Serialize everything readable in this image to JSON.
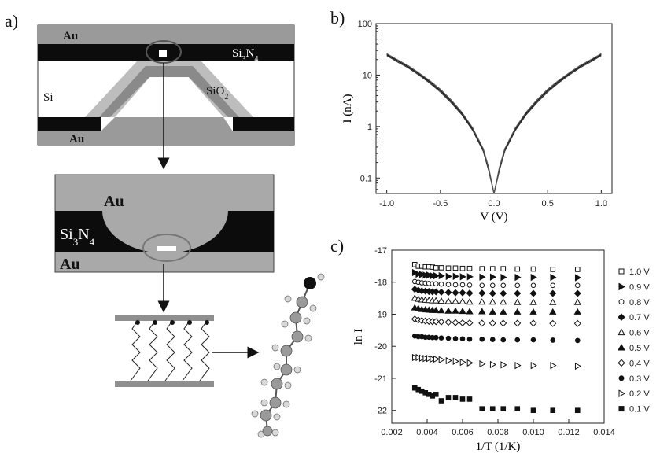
{
  "figure": {
    "panels": {
      "a": {
        "label": "a)",
        "top_device": {
          "au_top": "Au",
          "si3n4": "Si3N4",
          "si": "Si",
          "sio2": "SiO2",
          "au_bottom": "Au"
        },
        "mid_device": {
          "au_top": "Au",
          "si3n4": "Si3N4",
          "au_bottom": "Au"
        }
      },
      "b": {
        "label": "b)"
      },
      "c": {
        "label": "c)"
      }
    }
  },
  "chart_data": [
    {
      "type": "line",
      "panel": "b",
      "xlabel": "V (V)",
      "ylabel": "I (nA)",
      "yscale": "log",
      "xlim": [
        -1.1,
        1.1
      ],
      "ylim": [
        0.05,
        100
      ],
      "xticks": [
        "-1.0",
        "-0.5",
        "0.0",
        "0.5",
        "1.0"
      ],
      "yticks": [
        "0.1",
        "1",
        "10",
        "100"
      ],
      "grid": false,
      "series": [
        {
          "x": [
            -1.0,
            -0.9,
            -0.8,
            -0.7,
            -0.6,
            -0.5,
            -0.4,
            -0.3,
            -0.2,
            -0.1,
            -0.05,
            0.0,
            0.05,
            0.1,
            0.2,
            0.3,
            0.4,
            0.5,
            0.6,
            0.7,
            0.8,
            0.9,
            1.0
          ],
          "values": [
            25,
            19,
            14.5,
            10.5,
            7.4,
            5.0,
            3.1,
            1.8,
            0.9,
            0.35,
            0.15,
            0.05,
            0.15,
            0.35,
            0.9,
            1.8,
            3.1,
            5.0,
            7.4,
            10.5,
            14.5,
            19,
            25
          ]
        },
        {
          "x": [
            -1.0,
            -0.9,
            -0.8,
            -0.7,
            -0.6,
            -0.5,
            -0.4,
            -0.3,
            -0.2,
            -0.1,
            -0.05,
            0.0,
            0.05,
            0.1,
            0.2,
            0.3,
            0.4,
            0.5,
            0.6,
            0.7,
            0.8,
            0.9,
            1.0
          ],
          "values": [
            24,
            18,
            13.8,
            10.0,
            7.0,
            4.7,
            2.9,
            1.7,
            0.85,
            0.33,
            0.14,
            0.05,
            0.14,
            0.33,
            0.85,
            1.7,
            2.9,
            4.7,
            7.0,
            10.0,
            13.8,
            18,
            24
          ]
        },
        {
          "x": [
            -1.0,
            -0.9,
            -0.8,
            -0.7,
            -0.6,
            -0.5,
            -0.4,
            -0.3,
            -0.2,
            -0.1,
            -0.05,
            0.0,
            0.05,
            0.1,
            0.2,
            0.3,
            0.4,
            0.5,
            0.6,
            0.7,
            0.8,
            0.9,
            1.0
          ],
          "values": [
            26,
            19.8,
            15.2,
            11.0,
            7.8,
            5.3,
            3.3,
            1.9,
            0.95,
            0.37,
            0.16,
            0.05,
            0.16,
            0.37,
            0.95,
            1.9,
            3.3,
            5.3,
            7.8,
            11.0,
            15.2,
            19.8,
            26
          ]
        }
      ]
    },
    {
      "type": "scatter",
      "panel": "c",
      "xlabel": "1/T (1/K)",
      "ylabel": "ln I",
      "xlim": [
        0.002,
        0.014
      ],
      "ylim": [
        -22.4,
        -17.0
      ],
      "xticks": [
        "0.002",
        "0.004",
        "0.006",
        "0.008",
        "0.010",
        "0.012",
        "0.014"
      ],
      "yticks": [
        "-17",
        "-18",
        "-19",
        "-20",
        "-21",
        "-22"
      ],
      "grid": false,
      "legend_position": "right",
      "x": [
        0.0033,
        0.0035,
        0.0037,
        0.0039,
        0.0041,
        0.0043,
        0.0045,
        0.0048,
        0.0052,
        0.0056,
        0.006,
        0.0064,
        0.0071,
        0.0077,
        0.0083,
        0.0091,
        0.01,
        0.0111,
        0.0125
      ],
      "series": [
        {
          "name": "1.0 V",
          "marker": "square-open",
          "values": [
            -17.45,
            -17.5,
            -17.5,
            -17.52,
            -17.52,
            -17.53,
            -17.55,
            -17.55,
            -17.56,
            -17.56,
            -17.57,
            -17.57,
            -17.58,
            -17.58,
            -17.58,
            -17.59,
            -17.59,
            -17.6,
            -17.6
          ]
        },
        {
          "name": "0.9 V",
          "marker": "triangle-right",
          "values": [
            -17.7,
            -17.75,
            -17.76,
            -17.78,
            -17.78,
            -17.8,
            -17.8,
            -17.8,
            -17.82,
            -17.82,
            -17.83,
            -17.83,
            -17.84,
            -17.84,
            -17.85,
            -17.85,
            -17.85,
            -17.85,
            -17.86
          ]
        },
        {
          "name": "0.8 V",
          "marker": "circle-open",
          "values": [
            -17.98,
            -18.0,
            -18.02,
            -18.03,
            -18.04,
            -18.05,
            -18.05,
            -18.06,
            -18.07,
            -18.08,
            -18.08,
            -18.09,
            -18.1,
            -18.1,
            -18.1,
            -18.1,
            -18.1,
            -18.1,
            -18.1
          ]
        },
        {
          "name": "0.7 V",
          "marker": "diamond",
          "values": [
            -18.22,
            -18.25,
            -18.27,
            -18.28,
            -18.29,
            -18.3,
            -18.3,
            -18.31,
            -18.32,
            -18.33,
            -18.33,
            -18.34,
            -18.34,
            -18.35,
            -18.35,
            -18.35,
            -18.35,
            -18.35,
            -18.35
          ]
        },
        {
          "name": "0.6 V",
          "marker": "triangle-open",
          "values": [
            -18.5,
            -18.53,
            -18.55,
            -18.56,
            -18.57,
            -18.58,
            -18.58,
            -18.59,
            -18.6,
            -18.6,
            -18.61,
            -18.62,
            -18.62,
            -18.62,
            -18.62,
            -18.63,
            -18.63,
            -18.63,
            -18.63
          ]
        },
        {
          "name": "0.5 V",
          "marker": "triangle",
          "values": [
            -18.8,
            -18.82,
            -18.85,
            -18.86,
            -18.87,
            -18.88,
            -18.88,
            -18.89,
            -18.9,
            -18.9,
            -18.91,
            -18.92,
            -18.92,
            -18.93,
            -18.93,
            -18.93,
            -18.93,
            -18.93,
            -18.93
          ]
        },
        {
          "name": "0.4 V",
          "marker": "diamond-open",
          "values": [
            -19.15,
            -19.18,
            -19.2,
            -19.21,
            -19.22,
            -19.23,
            -19.23,
            -19.24,
            -19.25,
            -19.26,
            -19.27,
            -19.27,
            -19.28,
            -19.28,
            -19.28,
            -19.28,
            -19.28,
            -19.29,
            -19.29
          ]
        },
        {
          "name": "0.3 V",
          "marker": "circle",
          "values": [
            -19.68,
            -19.7,
            -19.7,
            -19.72,
            -19.72,
            -19.73,
            -19.73,
            -19.74,
            -19.75,
            -19.76,
            -19.77,
            -19.78,
            -19.78,
            -19.79,
            -19.8,
            -19.8,
            -19.8,
            -19.81,
            -19.82
          ]
        },
        {
          "name": "0.2 V",
          "marker": "triangle-right-open",
          "values": [
            -20.35,
            -20.35,
            -20.37,
            -20.38,
            -20.38,
            -20.4,
            -20.4,
            -20.42,
            -20.45,
            -20.47,
            -20.5,
            -20.52,
            -20.55,
            -20.57,
            -20.58,
            -20.6,
            -20.6,
            -20.6,
            -20.62
          ]
        },
        {
          "name": "0.1 V",
          "marker": "square",
          "values": [
            -21.3,
            -21.35,
            -21.4,
            -21.45,
            -21.5,
            -21.55,
            -21.5,
            -21.7,
            -21.6,
            -21.6,
            -21.65,
            -21.65,
            -21.95,
            -21.95,
            -21.95,
            -21.95,
            -22.0,
            -22.0,
            -22.0
          ]
        }
      ]
    }
  ]
}
